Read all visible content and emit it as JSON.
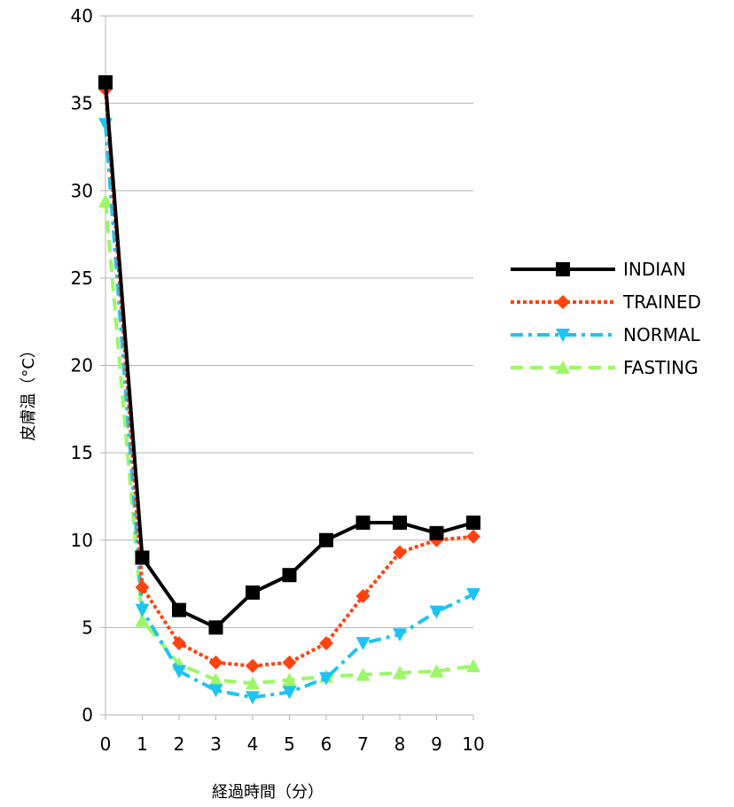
{
  "chart_data": {
    "type": "line",
    "xlabel": "経過時間（分）",
    "ylabel": "皮膚温（°C）",
    "x": [
      0,
      1,
      2,
      3,
      4,
      5,
      6,
      7,
      8,
      9,
      10
    ],
    "xlim": [
      0,
      10
    ],
    "ylim": [
      0,
      40
    ],
    "yticks": [
      0,
      5,
      10,
      15,
      20,
      25,
      30,
      35,
      40
    ],
    "grid": "horizontal",
    "legend_position": "right",
    "series": [
      {
        "name": "INDIAN",
        "color": "#000000",
        "marker": "square",
        "dash": "solid",
        "values": [
          36.2,
          9.0,
          6.0,
          5.0,
          7.0,
          8.0,
          10.0,
          11.0,
          11.0,
          10.4,
          11.0
        ]
      },
      {
        "name": "TRAINED",
        "color": "#ff420e",
        "marker": "diamond",
        "dash": "dot",
        "values": [
          35.8,
          7.3,
          4.1,
          3.0,
          2.8,
          3.0,
          4.1,
          6.8,
          9.3,
          10.0,
          10.2
        ]
      },
      {
        "name": "NORMAL",
        "color": "#1fc3f2",
        "marker": "triangle-down",
        "dash": "dashdot",
        "values": [
          33.8,
          6.0,
          2.5,
          1.4,
          1.0,
          1.3,
          2.1,
          4.1,
          4.6,
          5.9,
          6.9
        ]
      },
      {
        "name": "FASTING",
        "color": "#9cf767",
        "marker": "triangle-up",
        "dash": "dash",
        "values": [
          29.4,
          5.4,
          2.9,
          2.0,
          1.8,
          2.0,
          2.2,
          2.3,
          2.4,
          2.5,
          2.8
        ]
      }
    ]
  }
}
